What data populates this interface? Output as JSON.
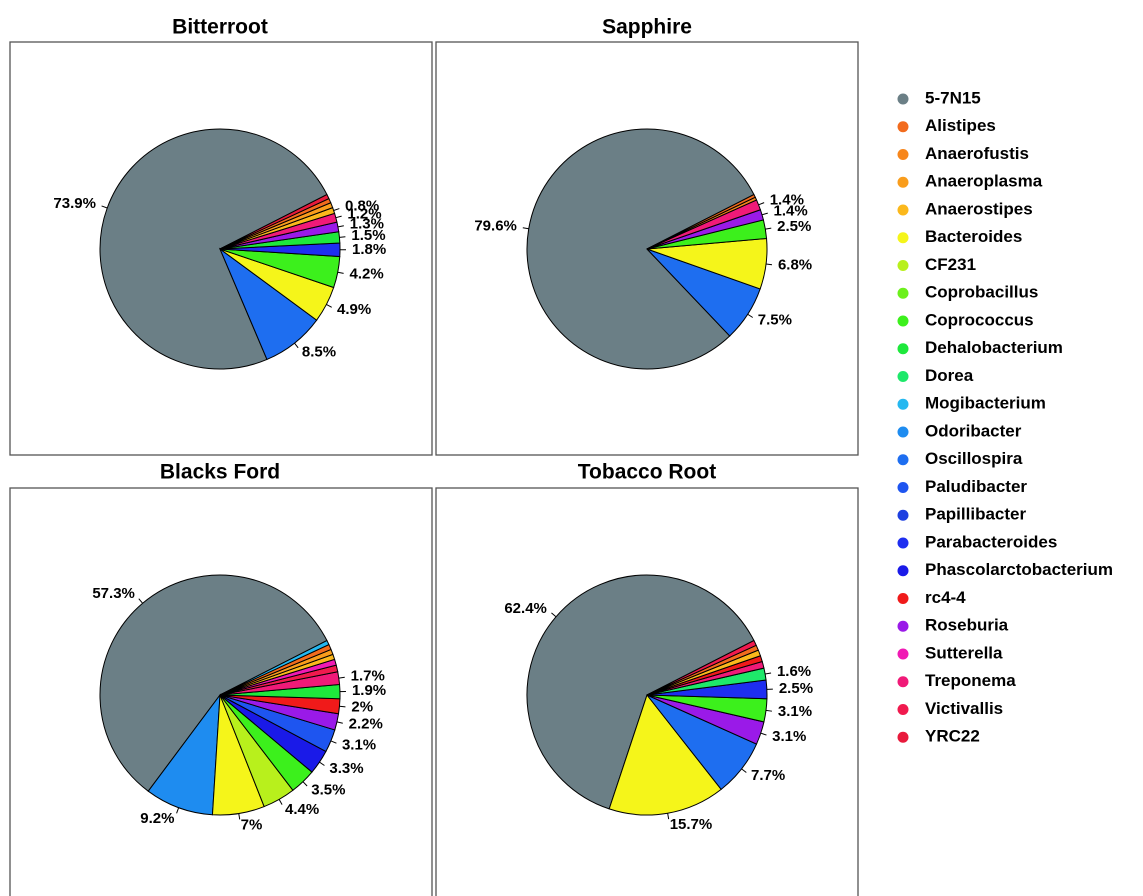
{
  "chart_data": [
    {
      "type": "pie",
      "title": "Bitterroot",
      "categories": [
        "5-7N15",
        "Oscillospira",
        "Bacteroides",
        "Coprococcus",
        "Parabacteroides",
        "Dehalobacterium",
        "Roseburia",
        "Treponema",
        "Anaerostipes",
        "Anaeroplasma",
        "Alistipes",
        "YRC22"
      ],
      "values": [
        73.9,
        8.5,
        4.9,
        4.2,
        1.8,
        1.5,
        1.3,
        1.2,
        0.8,
        0.7,
        0.6,
        0.6
      ],
      "value_labels": [
        "73.9%",
        "8.5%",
        "4.9%",
        "4.2%",
        "1.8%",
        "1.5%",
        "1.3%",
        "1.2%",
        "0.8%",
        null,
        null,
        null
      ]
    },
    {
      "type": "pie",
      "title": "Sapphire",
      "categories": [
        "5-7N15",
        "Oscillospira",
        "Bacteroides",
        "Coprococcus",
        "Roseburia",
        "Treponema",
        "Anaerofustis",
        "Alistipes"
      ],
      "values": [
        79.6,
        7.5,
        6.8,
        2.5,
        1.4,
        1.4,
        0.4,
        0.4
      ],
      "value_labels": [
        "79.6%",
        "7.5%",
        "6.8%",
        "2.5%",
        "1.4%",
        "1.4%",
        null,
        null
      ]
    },
    {
      "type": "pie",
      "title": "Blacks Ford",
      "categories": [
        "5-7N15",
        "Odoribacter",
        "Bacteroides",
        "CF231",
        "Coprococcus",
        "Phascolarctobacterium",
        "Paludibacter",
        "Roseburia",
        "rc4-4",
        "Dehalobacterium",
        "Treponema",
        "Victivallis",
        "Sutterella",
        "Anaerostipes",
        "Anaeroplasma",
        "Alistipes",
        "Mogibacterium"
      ],
      "values": [
        57.3,
        9.2,
        7,
        4.4,
        3.5,
        3.3,
        3.1,
        2.2,
        2,
        1.9,
        1.7,
        0.9,
        0.8,
        0.7,
        0.7,
        0.7,
        0.6
      ],
      "value_labels": [
        "57.3%",
        "9.2%",
        "7%",
        "4.4%",
        "3.5%",
        "3.3%",
        "3.1%",
        "2.2%",
        "2%",
        "1.9%",
        "1.7%",
        null,
        null,
        null,
        null,
        null,
        null
      ]
    },
    {
      "type": "pie",
      "title": "Tobacco Root",
      "categories": [
        "5-7N15",
        "Bacteroides",
        "Oscillospira",
        "Roseburia",
        "Coprococcus",
        "Parabacteroides",
        "Dorea",
        "Treponema",
        "rc4-4",
        "Anaerostipes",
        "Alistipes",
        "Victivallis"
      ],
      "values": [
        62.4,
        15.7,
        7.7,
        3.1,
        3.1,
        2.5,
        1.6,
        0.9,
        0.8,
        0.8,
        0.7,
        0.7
      ],
      "value_labels": [
        "62.4%",
        "15.7%",
        "7.7%",
        "3.1%",
        "3.1%",
        "2.5%",
        "1.6%",
        null,
        null,
        null,
        null,
        null
      ]
    }
  ],
  "legend": {
    "entries": [
      {
        "name": "5-7N15",
        "color": "#6b7f86"
      },
      {
        "name": "Alistipes",
        "color": "#f26b1d"
      },
      {
        "name": "Anaerofustis",
        "color": "#f7861b"
      },
      {
        "name": "Anaeroplasma",
        "color": "#f99d1c"
      },
      {
        "name": "Anaerostipes",
        "color": "#fbb81c"
      },
      {
        "name": "Bacteroides",
        "color": "#f5f51a"
      },
      {
        "name": "CF231",
        "color": "#b8f01c"
      },
      {
        "name": "Coprobacillus",
        "color": "#6cf01c"
      },
      {
        "name": "Coprococcus",
        "color": "#3cf01c"
      },
      {
        "name": "Dehalobacterium",
        "color": "#1ee83c"
      },
      {
        "name": "Dorea",
        "color": "#1ee86a"
      },
      {
        "name": "Mogibacterium",
        "color": "#25b8f0"
      },
      {
        "name": "Odoribacter",
        "color": "#1e8cf0"
      },
      {
        "name": "Oscillospira",
        "color": "#1e6ef0"
      },
      {
        "name": "Paludibacter",
        "color": "#1e55f0"
      },
      {
        "name": "Papillibacter",
        "color": "#1e40e0"
      },
      {
        "name": "Parabacteroides",
        "color": "#1e2ef0"
      },
      {
        "name": "Phascolarctobacterium",
        "color": "#1a1ae8"
      },
      {
        "name": "rc4-4",
        "color": "#f01a1a"
      },
      {
        "name": "Roseburia",
        "color": "#9a1ae8"
      },
      {
        "name": "Sutterella",
        "color": "#f01ab4"
      },
      {
        "name": "Treponema",
        "color": "#f01a78"
      },
      {
        "name": "Victivallis",
        "color": "#f01a4e"
      },
      {
        "name": "YRC22",
        "color": "#e81a3c"
      }
    ]
  }
}
